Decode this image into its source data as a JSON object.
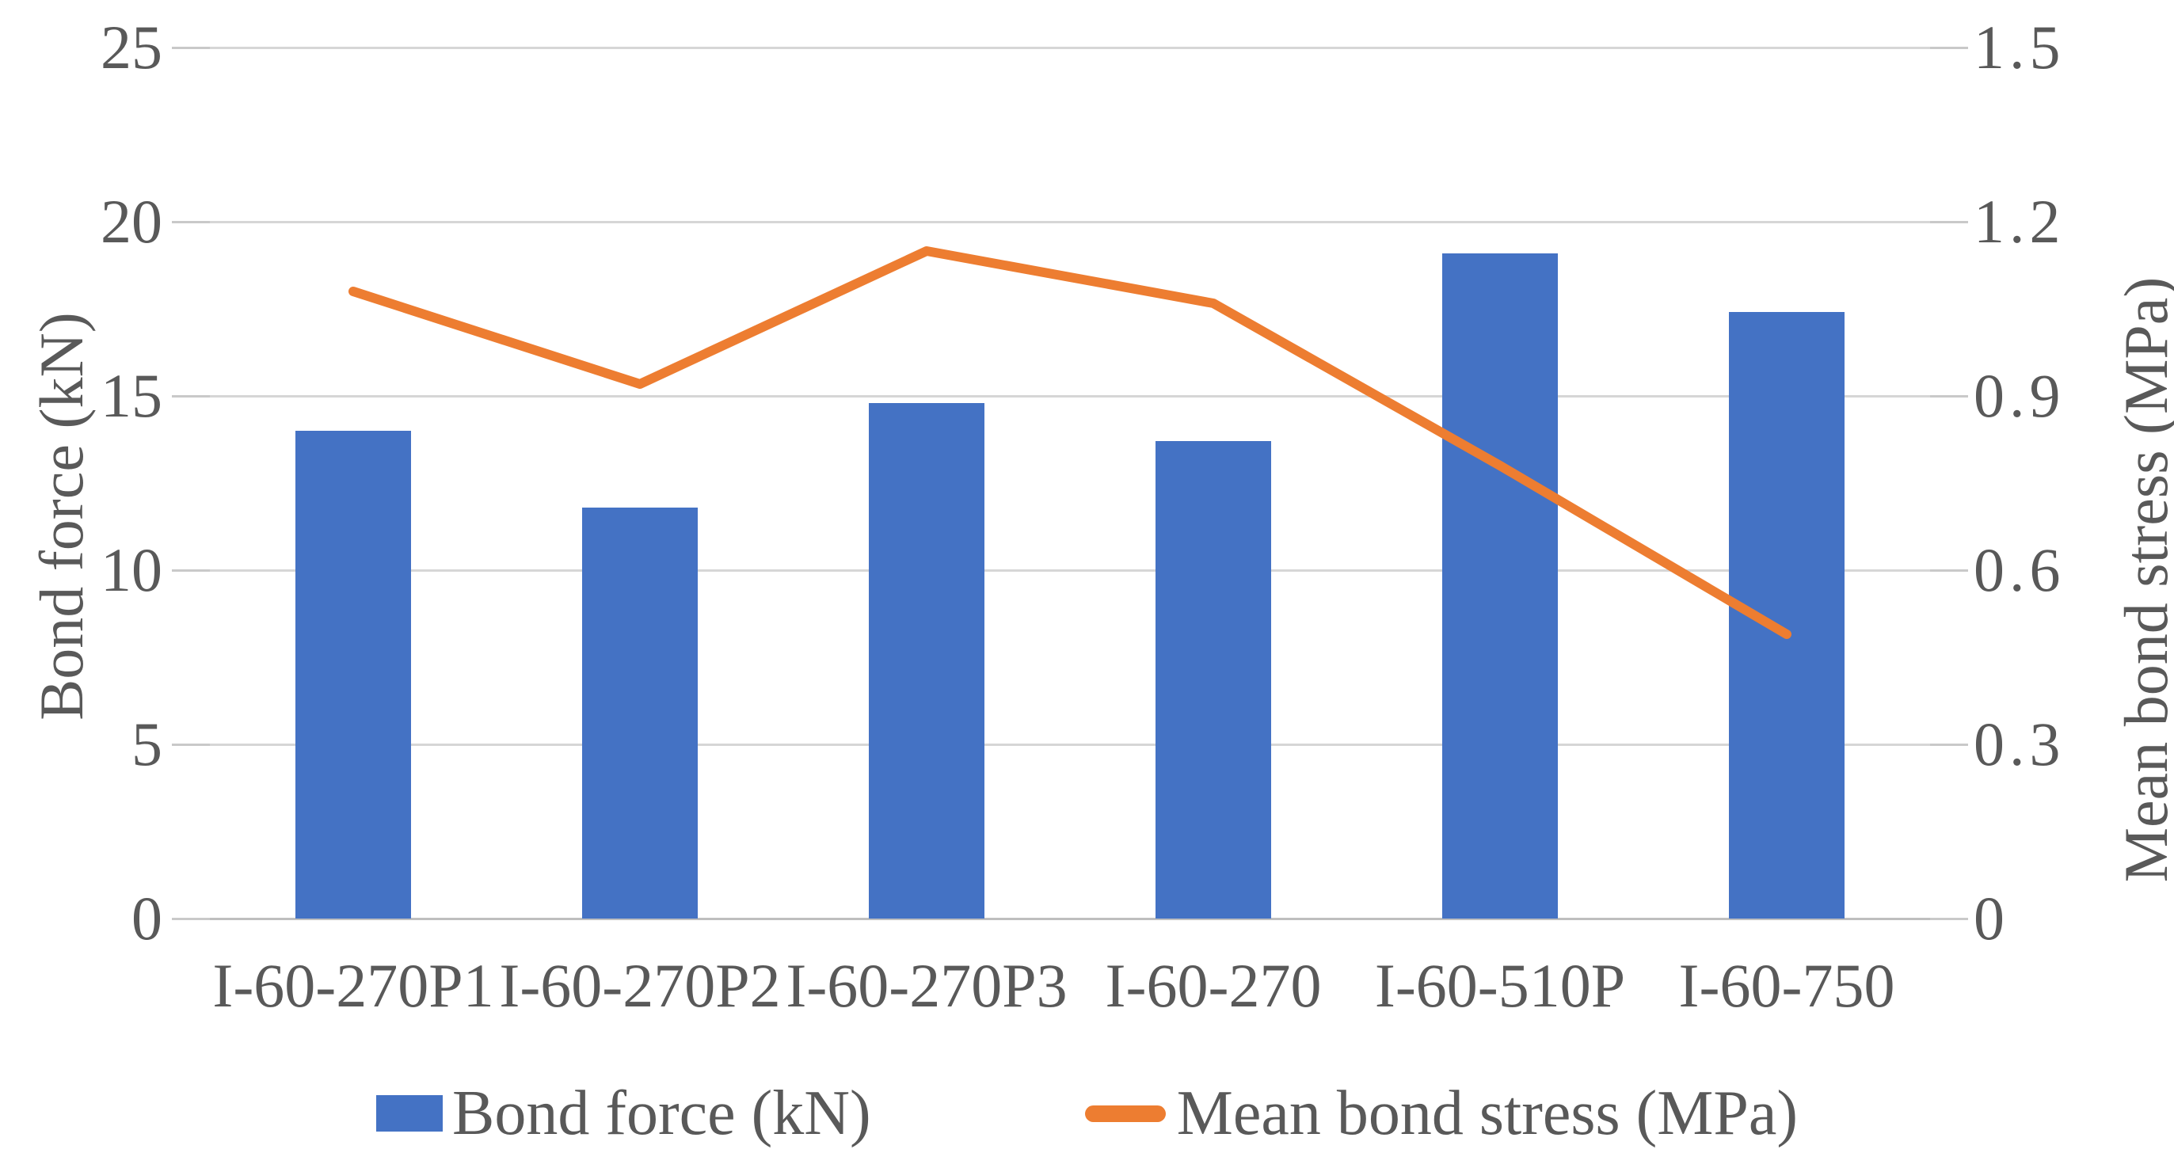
{
  "chart_data": {
    "type": "bar+line combo",
    "categories": [
      "I-60-270P1",
      "I-60-270P2",
      "I-60-270P3",
      "I-60-270",
      "I-60-510P",
      "I-60-750"
    ],
    "series": [
      {
        "name": "Bond force (kN)",
        "type": "bar",
        "axis": "left",
        "color": "#4472C4",
        "values": [
          14.0,
          11.8,
          14.8,
          13.7,
          19.1,
          17.4
        ]
      },
      {
        "name": "Mean bond stress (MPa)",
        "type": "line",
        "axis": "right",
        "color": "#ED7D31",
        "values": [
          1.08,
          0.92,
          1.15,
          1.06,
          0.78,
          0.49
        ]
      }
    ],
    "left_axis": {
      "label": "Bond force (kN)",
      "ticks": [
        "0",
        "5",
        "10",
        "15",
        "20",
        "25"
      ],
      "tick_values": [
        0,
        5,
        10,
        15,
        20,
        25
      ],
      "range": [
        0,
        25
      ]
    },
    "right_axis": {
      "label": "Mean bond stress (MPa)",
      "ticks": [
        "0",
        "0.3",
        "0.6",
        "0.9",
        "1.2",
        "1.5"
      ],
      "tick_values": [
        0,
        0.3,
        0.6,
        0.9,
        1.2,
        1.5
      ],
      "range": [
        0,
        1.5
      ]
    },
    "grid": true,
    "legend_position": "bottom",
    "colors": {
      "bar": "#4472C4",
      "line": "#ED7D31",
      "text": "#595959",
      "gridline": "#d6d6d6"
    }
  }
}
